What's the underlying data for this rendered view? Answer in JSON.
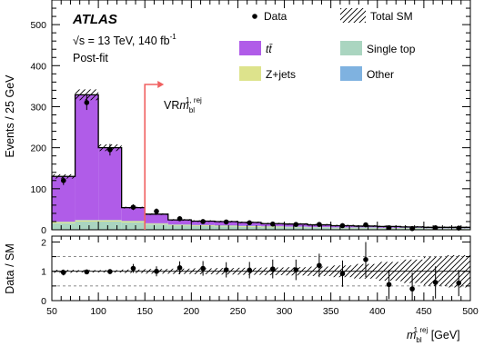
{
  "chart_data": [
    {
      "panel": "main",
      "type": "bar",
      "stacked": true,
      "ylabel": "Events / 25 GeV",
      "ylim": [
        0,
        560
      ],
      "yticks": [
        0,
        100,
        200,
        300,
        400,
        500
      ],
      "xlim": [
        50,
        500
      ],
      "bin_edges": [
        50,
        75,
        100,
        125,
        150,
        175,
        200,
        225,
        250,
        275,
        300,
        325,
        350,
        375,
        400,
        425,
        450,
        475,
        500
      ],
      "series": [
        {
          "name": "Single top",
          "color": "#aad5c0",
          "values": [
            16,
            20,
            20,
            18,
            13,
            10,
            9,
            8,
            7,
            6,
            6,
            5,
            4,
            4,
            3,
            3,
            2,
            2
          ]
        },
        {
          "name": "Z+jets",
          "color": "#dde38c",
          "values": [
            3,
            3,
            3,
            3,
            2,
            2,
            2,
            2,
            2,
            2,
            1,
            1,
            1,
            1,
            1,
            1,
            1,
            1
          ]
        },
        {
          "name": "Other",
          "color": "#7fb2e0",
          "values": [
            1,
            1,
            1,
            1,
            1,
            1,
            1,
            1,
            1,
            1,
            1,
            1,
            1,
            1,
            1,
            1,
            1,
            1
          ]
        },
        {
          "name": "tt̄",
          "color": "#b05ce8",
          "values": [
            110,
            305,
            176,
            32,
            22,
            11,
            9,
            9,
            8,
            6,
            6,
            5,
            4,
            3,
            3,
            2,
            2,
            2
          ]
        }
      ],
      "data": {
        "name": "Data",
        "x": [
          62.5,
          87.5,
          112.5,
          137.5,
          162.5,
          187.5,
          212.5,
          237.5,
          262.5,
          287.5,
          312.5,
          337.5,
          362.5,
          387.5,
          412.5,
          437.5,
          462.5,
          487.5
        ],
        "y": [
          120,
          310,
          195,
          55,
          45,
          27,
          20,
          19,
          17,
          14,
          13,
          13,
          10,
          12,
          5,
          3,
          5,
          4
        ],
        "err": [
          11,
          18,
          14,
          7,
          7,
          5,
          4,
          4,
          4,
          4,
          4,
          4,
          3,
          3,
          2,
          2,
          2,
          2
        ]
      },
      "total_sm_label": "Total SM",
      "experiment": "ATLAS",
      "energy_label": "√s = 13 TeV, 140 fb",
      "energy_superscript": "-1",
      "fit_label": "Post-fit",
      "region": {
        "label": "VRm",
        "sub": "bl",
        "sup": "1, rej",
        "boundary_x": 150
      }
    },
    {
      "panel": "ratio",
      "type": "scatter",
      "ylabel": "Data / SM",
      "ylim": [
        0,
        2.2
      ],
      "yticks": [
        0,
        1,
        2
      ],
      "reference_lines": [
        0.5,
        1,
        1.5
      ],
      "xlim": [
        50,
        500
      ],
      "xticks": [
        50,
        100,
        150,
        200,
        250,
        300,
        350,
        400,
        450,
        500
      ],
      "xlabel": "m",
      "xlabel_sub": "bl",
      "xlabel_sup": "1 rej",
      "xlabel_unit": "[GeV]",
      "x": [
        62.5,
        87.5,
        112.5,
        137.5,
        162.5,
        187.5,
        212.5,
        237.5,
        262.5,
        287.5,
        312.5,
        337.5,
        362.5,
        387.5,
        412.5,
        437.5,
        462.5,
        487.5
      ],
      "y": [
        0.96,
        0.98,
        0.99,
        1.1,
        1.0,
        1.12,
        1.1,
        1.05,
        1.04,
        1.08,
        1.05,
        1.2,
        0.92,
        1.4,
        0.55,
        0.4,
        0.62,
        0.6
      ],
      "err": [
        0.1,
        0.06,
        0.08,
        0.15,
        0.17,
        0.22,
        0.25,
        0.26,
        0.28,
        0.32,
        0.35,
        0.4,
        0.45,
        0.6,
        0.5,
        0.55,
        0.55,
        0.45
      ],
      "band_halfwidth": [
        0.05,
        0.04,
        0.04,
        0.06,
        0.08,
        0.09,
        0.1,
        0.11,
        0.12,
        0.13,
        0.14,
        0.16,
        0.2,
        0.25,
        0.32,
        0.4,
        0.5,
        0.55
      ]
    }
  ]
}
